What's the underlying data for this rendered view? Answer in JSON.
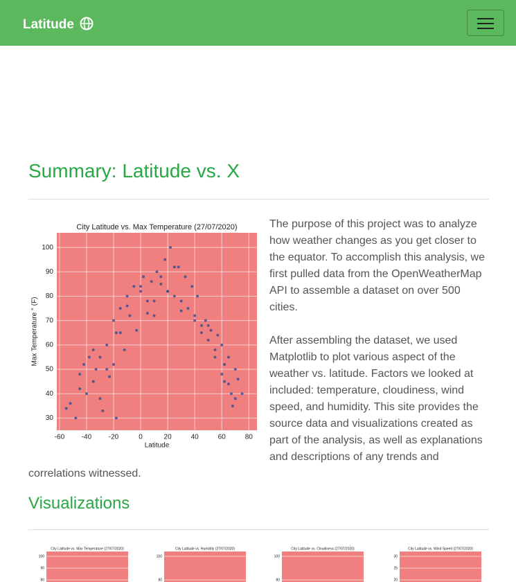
{
  "navbar": {
    "brand": "Latitude"
  },
  "summary": {
    "heading": "Summary: Latitude vs. X",
    "paragraphs": [
      "The purpose of this project was to analyze how weather changes as you get closer to the equator. To accomplish this analysis, we first pulled data from the OpenWeatherMap API to assemble a dataset on over 500 cities.",
      "After assembling the dataset, we used Matplotlib to plot various aspect of the weather vs. latitude. Factors we looked at included: temperature, cloudiness, wind speed, and humidity. This site provides the source data and visualizations created as part of the analysis, as well as explanations and descriptions of any trends and correlations witnessed."
    ]
  },
  "main_chart": {
    "type": "scatter",
    "title": "City Latitude vs. Max Temperature (27/07/2020)",
    "x_label": "Latitude",
    "y_label": "Max Temperature ° (F)",
    "color": "#3f4f8f",
    "xlim": [
      -62,
      86
    ],
    "ylim": [
      25,
      106
    ],
    "xticks": [
      -60,
      -40,
      -20,
      0,
      20,
      40,
      60,
      80
    ],
    "yticks": [
      30,
      40,
      50,
      60,
      70,
      80,
      90,
      100
    ],
    "grid": true,
    "x": [
      -55,
      -52,
      -48,
      -45,
      -42,
      -40,
      -38,
      -35,
      -33,
      -30,
      -28,
      -25,
      -23,
      -20,
      -18,
      -15,
      -12,
      -10,
      -8,
      -5,
      -3,
      0,
      2,
      5,
      8,
      10,
      12,
      15,
      18,
      20,
      22,
      25,
      28,
      30,
      33,
      35,
      38,
      40,
      42,
      45,
      48,
      50,
      52,
      55,
      57,
      60,
      62,
      65,
      67,
      70,
      72,
      75,
      -35,
      -25,
      -15,
      -20,
      -10,
      0,
      10,
      20,
      30,
      40,
      50,
      60,
      65,
      70,
      -45,
      -30,
      -18,
      5,
      15,
      25,
      45,
      55,
      62,
      68
    ],
    "y": [
      34,
      36,
      30,
      48,
      52,
      40,
      55,
      45,
      50,
      55,
      33,
      60,
      47,
      70,
      65,
      75,
      58,
      80,
      72,
      84,
      66,
      82,
      88,
      78,
      86,
      72,
      90,
      85,
      95,
      82,
      100,
      80,
      92,
      78,
      88,
      75,
      84,
      72,
      80,
      68,
      70,
      62,
      66,
      58,
      64,
      48,
      52,
      44,
      40,
      38,
      46,
      40,
      58,
      50,
      65,
      52,
      76,
      84,
      78,
      82,
      74,
      70,
      68,
      60,
      55,
      50,
      42,
      38,
      30,
      73,
      88,
      92,
      65,
      55,
      45,
      35
    ]
  },
  "visualizations": {
    "heading": "Visualizations",
    "thumbnails": [
      {
        "title": "City Latitude vs. Max Temperature (27/07/2020)",
        "yticks": [
          100,
          90,
          80
        ]
      },
      {
        "title": "City Latitude vs. Humidity (27/07/2020)",
        "yticks": [
          100,
          80
        ]
      },
      {
        "title": "City Latitude vs. Cloudiness (27/07/2020)",
        "yticks": [
          100,
          80
        ]
      },
      {
        "title": "City Latitude vs. Wind Speed (27/07/2020)",
        "yticks": [
          30,
          25,
          20
        ]
      }
    ]
  }
}
